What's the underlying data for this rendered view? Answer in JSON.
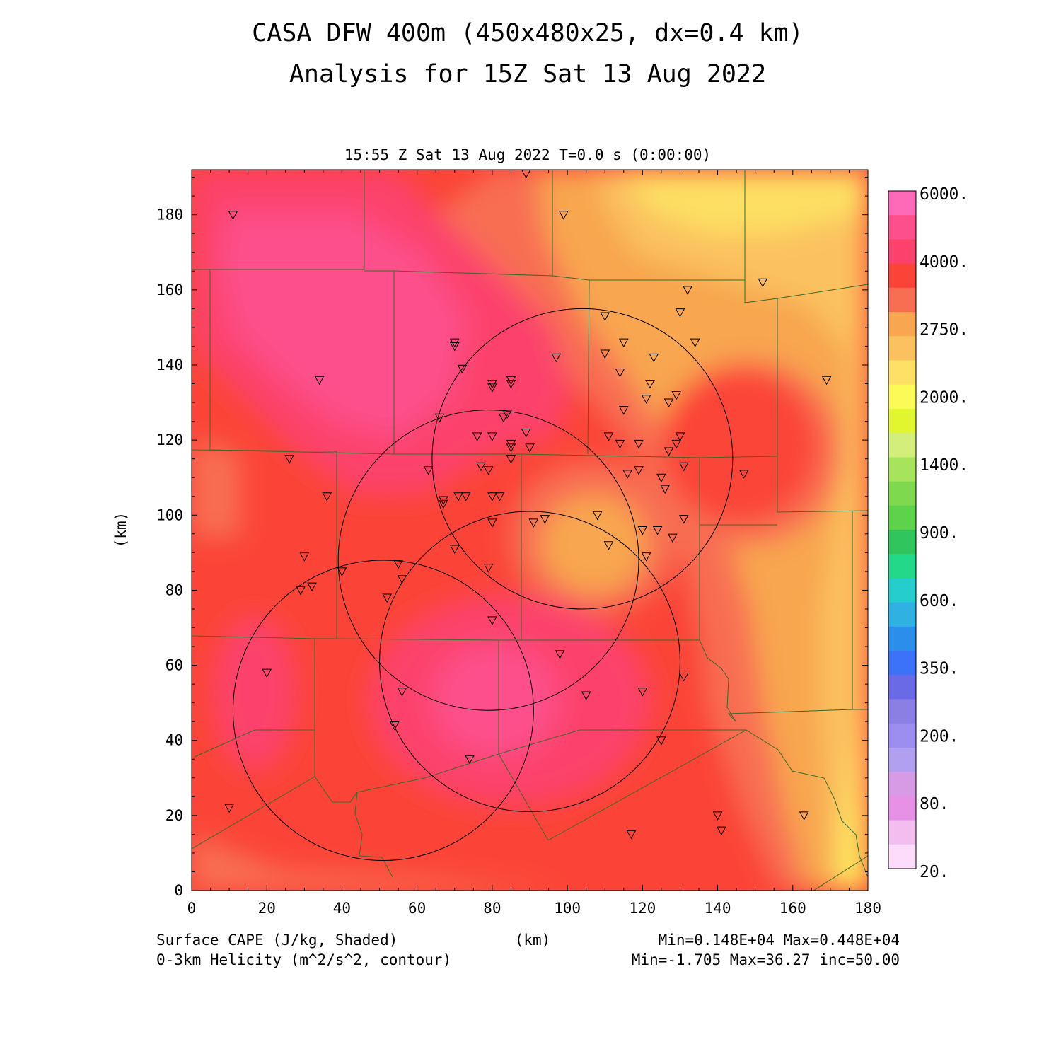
{
  "title": {
    "line1": "CASA DFW 400m (450x480x25, dx=0.4 km)",
    "line2": "Analysis for 15Z Sat 13 Aug 2022"
  },
  "timestamp": "15:55 Z Sat 13 Aug 2022   T=0.0 s (0:00:00)",
  "axes": {
    "xlabel": "(km)",
    "ylabel": "(km)",
    "xlim": [
      0,
      180
    ],
    "ylim": [
      0,
      192
    ],
    "xticks": [
      "0",
      "20",
      "40",
      "60",
      "80",
      "100",
      "120",
      "140",
      "160",
      "180"
    ],
    "yticks": [
      "0",
      "20",
      "40",
      "60",
      "80",
      "100",
      "120",
      "140",
      "160",
      "180"
    ]
  },
  "colorbar": {
    "labels": [
      "6000.",
      "4000.",
      "2750.",
      "2000.",
      "1400.",
      "900.",
      "600.",
      "350.",
      "200.",
      "80.",
      "20."
    ],
    "colors": [
      "#ff6ab8",
      "#fd4f8b",
      "#fc426c",
      "#fb4437",
      "#f86e52",
      "#f8a650",
      "#fbc15f",
      "#fde064",
      "#fbfb58",
      "#e2f630",
      "#d3ee7a",
      "#a8e45b",
      "#7ed94f",
      "#5dd34a",
      "#30c65d",
      "#22d98a",
      "#25cdcd",
      "#2fb2e2",
      "#2b8eea",
      "#3c72f7",
      "#6a6ae6",
      "#8b7fe6",
      "#9b8ef0",
      "#b19ff0",
      "#d79be6",
      "#e690e6",
      "#f2bef0",
      "#fcdcfa"
    ]
  },
  "footer": {
    "field1": "Surface CAPE (J/kg, Shaded)",
    "field2": "0-3km Helicity (m^2/s^2, contour)",
    "xunit": "(km)",
    "range1": "Min=0.148E+04 Max=0.448E+04",
    "range2": "Min=-1.705 Max=36.27 inc=50.00"
  },
  "chart_data": {
    "type": "heatmap",
    "field": "Surface CAPE",
    "units": "J/kg",
    "min": 1480,
    "max": 4480,
    "helicity_min": -1.705,
    "helicity_max": 36.27,
    "helicity_inc": 50.0,
    "radar_rings": [
      {
        "center": [
          104,
          115
        ],
        "radius_km": 40
      },
      {
        "center": [
          79,
          88
        ],
        "radius_km": 40
      },
      {
        "center": [
          90,
          61
        ],
        "radius_km": 40
      },
      {
        "center": [
          51,
          48
        ],
        "radius_km": 40
      }
    ],
    "stations": [
      [
        11,
        180
      ],
      [
        99,
        180
      ],
      [
        152,
        162
      ],
      [
        132,
        160
      ],
      [
        130,
        154
      ],
      [
        110,
        153
      ],
      [
        134,
        146
      ],
      [
        115,
        146
      ],
      [
        70,
        146
      ],
      [
        70,
        145
      ],
      [
        110,
        143
      ],
      [
        97,
        142
      ],
      [
        123,
        142
      ],
      [
        72,
        139
      ],
      [
        114,
        138
      ],
      [
        34,
        136
      ],
      [
        169,
        136
      ],
      [
        85,
        136
      ],
      [
        80,
        135
      ],
      [
        80,
        134
      ],
      [
        85,
        135
      ],
      [
        122,
        135
      ],
      [
        129,
        132
      ],
      [
        121,
        131
      ],
      [
        127,
        130
      ],
      [
        115,
        128
      ],
      [
        84,
        127
      ],
      [
        83,
        126
      ],
      [
        66,
        126
      ],
      [
        89,
        122
      ],
      [
        80,
        121
      ],
      [
        76,
        121
      ],
      [
        111,
        121
      ],
      [
        130,
        121
      ],
      [
        129,
        119
      ],
      [
        85,
        119
      ],
      [
        85,
        118
      ],
      [
        90,
        118
      ],
      [
        114,
        119
      ],
      [
        119,
        119
      ],
      [
        127,
        117
      ],
      [
        85,
        115
      ],
      [
        26,
        115
      ],
      [
        77,
        113
      ],
      [
        79,
        112
      ],
      [
        63,
        112
      ],
      [
        119,
        112
      ],
      [
        116,
        111
      ],
      [
        131,
        113
      ],
      [
        147,
        111
      ],
      [
        125,
        110
      ],
      [
        126,
        107
      ],
      [
        36,
        105
      ],
      [
        71,
        105
      ],
      [
        73,
        105
      ],
      [
        80,
        105
      ],
      [
        82,
        105
      ],
      [
        67,
        103
      ],
      [
        67,
        104
      ],
      [
        108,
        100
      ],
      [
        131,
        99
      ],
      [
        94,
        99
      ],
      [
        91,
        98
      ],
      [
        80,
        98
      ],
      [
        120,
        96
      ],
      [
        124,
        96
      ],
      [
        128,
        94
      ],
      [
        111,
        92
      ],
      [
        70,
        91
      ],
      [
        30,
        89
      ],
      [
        121,
        89
      ],
      [
        55,
        87
      ],
      [
        79,
        86
      ],
      [
        40,
        85
      ],
      [
        56,
        83
      ],
      [
        29,
        80
      ],
      [
        32,
        81
      ],
      [
        52,
        78
      ],
      [
        80,
        72
      ],
      [
        98,
        63
      ],
      [
        20,
        58
      ],
      [
        131,
        57
      ],
      [
        56,
        53
      ],
      [
        120,
        53
      ],
      [
        105,
        52
      ],
      [
        54,
        44
      ],
      [
        125,
        40
      ],
      [
        74,
        35
      ],
      [
        10,
        22
      ],
      [
        140,
        20
      ],
      [
        163,
        20
      ],
      [
        141,
        16
      ],
      [
        117,
        15
      ],
      [
        89,
        191
      ]
    ]
  }
}
